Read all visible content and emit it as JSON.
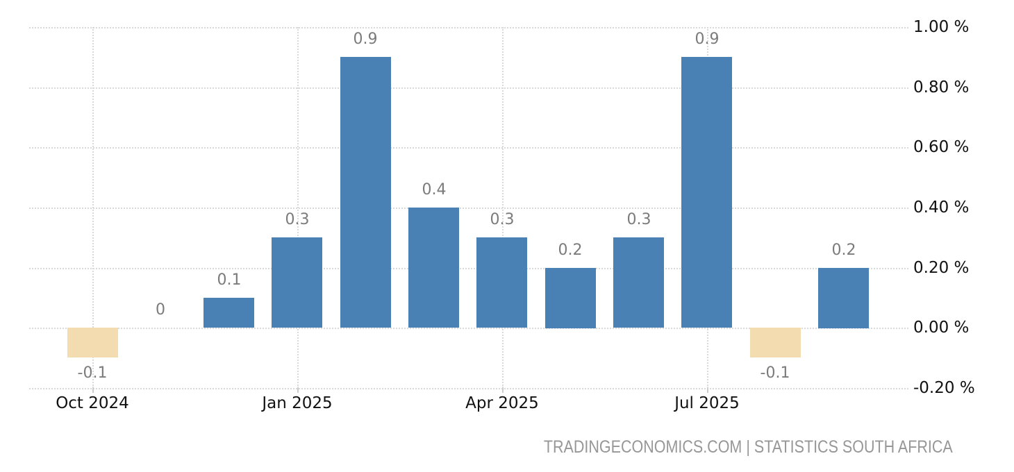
{
  "chart_data": {
    "type": "bar",
    "title": "",
    "categories": [
      "Oct 2024",
      "Nov 2024",
      "Dec 2024",
      "Jan 2025",
      "Feb 2025",
      "Mar 2025",
      "Apr 2025",
      "May 2025",
      "Jun 2025",
      "Jul 2025",
      "Aug 2025",
      "Sep 2025"
    ],
    "values": [
      -0.1,
      0,
      0.1,
      0.3,
      0.9,
      0.4,
      0.3,
      0.2,
      0.3,
      0.9,
      -0.1,
      0.2
    ],
    "bar_labels": [
      "-0.1",
      "0",
      "0.1",
      "0.3",
      "0.9",
      "0.4",
      "0.3",
      "0.2",
      "0.3",
      "0.9",
      "-0.1",
      "0.2"
    ],
    "x_tick_labels": [
      {
        "label": "Oct 2024",
        "index": 0
      },
      {
        "label": "Jan 2025",
        "index": 3
      },
      {
        "label": "Apr 2025",
        "index": 6
      },
      {
        "label": "Jul 2025",
        "index": 9
      }
    ],
    "y_tick_labels": [
      "1.00 %",
      "0.80 %",
      "0.60 %",
      "0.40 %",
      "0.20 %",
      "0.00 %",
      "-0.20 %"
    ],
    "y_tick_values": [
      1.0,
      0.8,
      0.6,
      0.4,
      0.2,
      0.0,
      -0.2
    ],
    "ylim": [
      -0.2,
      1.0
    ],
    "y_step": 0.2,
    "xlabel": "",
    "ylabel": "",
    "legend": "none",
    "grid": "dotted horizontal lines at each y tick; dotted vertical lines at labeled x ticks",
    "colors": {
      "positive_bar": "#4a81b5",
      "negative_bar": "#f2dcb0",
      "grid": "#d9d9d9",
      "value_label": "#7b7b7b",
      "axis_label": "#111111",
      "attribution": "#979797",
      "background": "#ffffff"
    }
  },
  "footer": {
    "attribution": "TRADINGECONOMICS.COM | STATISTICS SOUTH AFRICA"
  }
}
